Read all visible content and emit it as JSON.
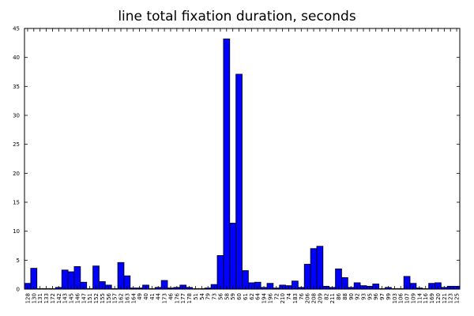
{
  "chart_data": {
    "type": "bar",
    "title": "line total fixation duration, seconds",
    "xlabel": "",
    "ylabel": "",
    "ylim": [
      0,
      45
    ],
    "yticks": [
      0,
      5,
      10,
      15,
      20,
      25,
      30,
      35,
      40,
      45
    ],
    "grid": false,
    "bar_color": "#0000ff",
    "categories": [
      "128",
      "130",
      "131",
      "133",
      "172",
      "142",
      "143",
      "145",
      "146",
      "147",
      "151",
      "152",
      "155",
      "156",
      "157",
      "162",
      "163",
      "164",
      "49",
      "40",
      "41",
      "44",
      "173",
      "46",
      "176",
      "177",
      "178",
      "51",
      "54",
      "79",
      "73",
      "56",
      "58",
      "59",
      "60",
      "61",
      "62",
      "64",
      "194",
      "196",
      "72",
      "210",
      "74",
      "183",
      "76",
      "206",
      "208",
      "209",
      "82",
      "211",
      "86",
      "88",
      "90",
      "92",
      "93",
      "95",
      "96",
      "97",
      "99",
      "103",
      "106",
      "107",
      "109",
      "114",
      "116",
      "169",
      "120",
      "121",
      "123",
      "125"
    ],
    "values": [
      1.0,
      3.6,
      0.1,
      0.1,
      0.1,
      0.3,
      3.3,
      3.0,
      3.9,
      1.2,
      0.1,
      4.0,
      1.3,
      0.7,
      0.1,
      4.6,
      2.3,
      0.2,
      0.2,
      0.7,
      0.1,
      0.3,
      1.5,
      0.2,
      0.3,
      0.7,
      0.3,
      0.1,
      0.1,
      0.2,
      0.8,
      5.8,
      43.2,
      11.4,
      37.1,
      3.2,
      1.1,
      1.2,
      0.3,
      1.0,
      0.2,
      0.7,
      0.6,
      1.4,
      0.3,
      4.3,
      7.0,
      7.4,
      0.5,
      0.3,
      3.5,
      2.0,
      0.3,
      1.1,
      0.6,
      0.5,
      0.9,
      0.1,
      0.3,
      0.1,
      0.1,
      2.2,
      1.0,
      0.2,
      0.1,
      1.0,
      1.1,
      0.3,
      0.5,
      0.5
    ]
  }
}
